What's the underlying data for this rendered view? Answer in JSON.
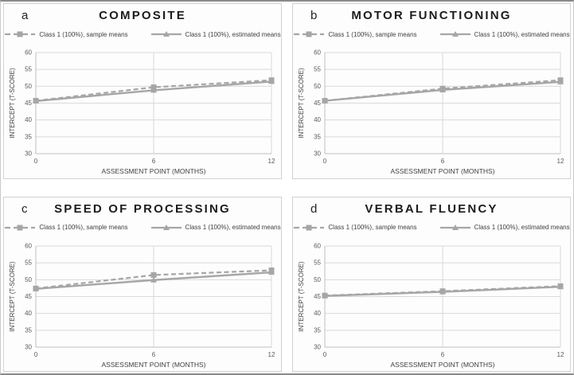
{
  "colors": {
    "series": "#a6a6a6",
    "gridline": "#d9d9d9",
    "axis_line": "#bfbfbf",
    "tick_text": "#595959",
    "axis_title_text": "#404040",
    "panel_title_text": "#1c1c1c"
  },
  "chart_data": [
    {
      "type": "line",
      "panel_label": "a",
      "title": "COMPOSITE",
      "x": [
        0,
        6,
        12
      ],
      "xlim": [
        0,
        12
      ],
      "xticks": [
        0,
        6,
        12
      ],
      "ylim": [
        30,
        60
      ],
      "yticks": [
        30,
        35,
        40,
        45,
        50,
        55,
        60
      ],
      "xlabel": "ASSESSMENT POINT (MONTHS)",
      "ylabel": "INTERCEPT (T-SCORE)",
      "grid": true,
      "legend_position": "top",
      "series": [
        {
          "name": "Class 1 (100%), sample means",
          "line_style": "dashed",
          "marker": "square",
          "values": [
            45.7,
            49.7,
            51.8
          ]
        },
        {
          "name": "Class 1 (100%), estimated means",
          "line_style": "solid",
          "marker": "triangle",
          "values": [
            45.6,
            48.8,
            51.4
          ]
        }
      ]
    },
    {
      "type": "line",
      "panel_label": "b",
      "title": "MOTOR FUNCTIONING",
      "x": [
        0,
        6,
        12
      ],
      "xlim": [
        0,
        12
      ],
      "xticks": [
        0,
        6,
        12
      ],
      "ylim": [
        30,
        60
      ],
      "yticks": [
        30,
        35,
        40,
        45,
        50,
        55,
        60
      ],
      "xlabel": "ASSESSMENT POINT (MONTHS)",
      "ylabel": "INTERCEPT (T-SCORE)",
      "grid": true,
      "legend_position": "top",
      "series": [
        {
          "name": "Class 1 (100%), sample means",
          "line_style": "dashed",
          "marker": "square",
          "values": [
            45.7,
            49.3,
            51.8
          ]
        },
        {
          "name": "Class 1 (100%), estimated means",
          "line_style": "solid",
          "marker": "triangle",
          "values": [
            45.7,
            48.9,
            51.3
          ]
        }
      ]
    },
    {
      "type": "line",
      "panel_label": "c",
      "title": "SPEED OF PROCESSING",
      "x": [
        0,
        6,
        12
      ],
      "xlim": [
        0,
        12
      ],
      "xticks": [
        0,
        6,
        12
      ],
      "ylim": [
        30,
        60
      ],
      "yticks": [
        30,
        35,
        40,
        45,
        50,
        55,
        60
      ],
      "xlabel": "ASSESSMENT POINT (MONTHS)",
      "ylabel": "INTERCEPT (T-SCORE)",
      "grid": true,
      "legend_position": "top",
      "series": [
        {
          "name": "Class 1 (100%), sample means",
          "line_style": "dashed",
          "marker": "square",
          "values": [
            47.4,
            51.4,
            52.8
          ]
        },
        {
          "name": "Class 1 (100%), estimated means",
          "line_style": "solid",
          "marker": "triangle",
          "values": [
            47.3,
            49.9,
            52.2
          ]
        }
      ]
    },
    {
      "type": "line",
      "panel_label": "d",
      "title": "VERBAL FLUENCY",
      "x": [
        0,
        6,
        12
      ],
      "xlim": [
        0,
        12
      ],
      "xticks": [
        0,
        6,
        12
      ],
      "ylim": [
        30,
        60
      ],
      "yticks": [
        30,
        35,
        40,
        45,
        50,
        55,
        60
      ],
      "xlabel": "ASSESSMENT POINT (MONTHS)",
      "ylabel": "INTERCEPT (T-SCORE)",
      "grid": true,
      "legend_position": "top",
      "series": [
        {
          "name": "Class 1 (100%), sample means",
          "line_style": "dashed",
          "marker": "square",
          "values": [
            45.3,
            46.6,
            48.1
          ]
        },
        {
          "name": "Class 1 (100%), estimated means",
          "line_style": "solid",
          "marker": "triangle",
          "values": [
            45.2,
            46.4,
            47.9
          ]
        }
      ]
    }
  ]
}
